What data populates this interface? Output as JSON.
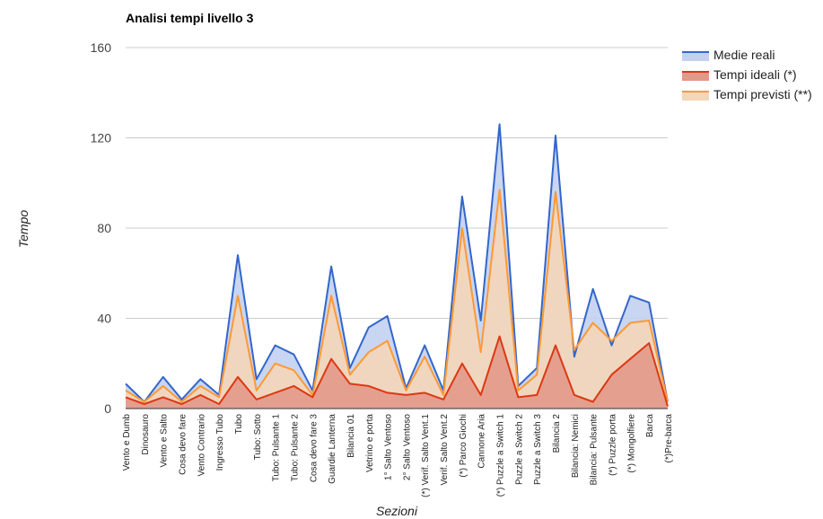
{
  "chart_data": {
    "type": "area",
    "title": "Analisi tempi livello 3",
    "xlabel": "Sezioni",
    "ylabel": "Tempo",
    "ylim": [
      0,
      160
    ],
    "yticks": [
      0,
      40,
      80,
      120,
      160
    ],
    "grid": true,
    "legend_position": "right",
    "categories": [
      "Vento e Dumb",
      "Dinosauro",
      "Vento e Salto",
      "Cosa devo fare",
      "Vento Contrario",
      "Ingresso Tubo",
      "Tubo",
      "Tubo: Sotto",
      "Tubo: Pulsante 1",
      "Tubo: Pulsante 2",
      "Cosa devo fare 3",
      "Guardie Lanterna",
      "Bilancia 01",
      "Vetrino e porta",
      "1° Salto Ventoso",
      "2° Salto Ventoso",
      "(*) Verif. Salto Vent.1",
      "Verif. Salto Vent.2",
      "(*) Parco Giochi",
      "Cannone Aria",
      "(*) Puzzle a Switch 1",
      "Puzzle a Switch 2",
      "Puzzle a Switch 3",
      "Bilancia 2",
      "Bilancia: Nemici",
      "Bilancia: Pulsante",
      "(*) Puzzle porta",
      "(*) Mongolfiere",
      "Barca",
      "(*)Pre-barca"
    ],
    "series": [
      {
        "name": "Medie reali",
        "color": "#3366cc",
        "fill": "#c3d1ef",
        "values": [
          11,
          3,
          14,
          4,
          13,
          6,
          68,
          13,
          28,
          24,
          8,
          63,
          18,
          36,
          41,
          9,
          28,
          8,
          94,
          39,
          126,
          10,
          18,
          121,
          23,
          53,
          28,
          50,
          47,
          3
        ]
      },
      {
        "name": "Tempi previsti (**)",
        "color": "#ff9933",
        "fill": "#f4d6b9",
        "values": [
          8,
          3,
          10,
          3,
          10,
          5,
          50,
          8,
          20,
          17,
          6,
          50,
          15,
          25,
          30,
          8,
          23,
          6,
          80,
          25,
          97,
          8,
          15,
          96,
          26,
          38,
          30,
          38,
          39,
          3
        ]
      },
      {
        "name": "Tempi ideali (*)",
        "color": "#dc3912",
        "fill": "#e2998a",
        "values": [
          5,
          2,
          5,
          2,
          6,
          2,
          14,
          4,
          7,
          10,
          5,
          22,
          11,
          10,
          7,
          6,
          7,
          4,
          20,
          6,
          32,
          5,
          6,
          28,
          6,
          3,
          15,
          22,
          29,
          1
        ]
      }
    ],
    "legend": [
      "Medie reali",
      "Tempi ideali (*)",
      "Tempi previsti (**)"
    ]
  }
}
